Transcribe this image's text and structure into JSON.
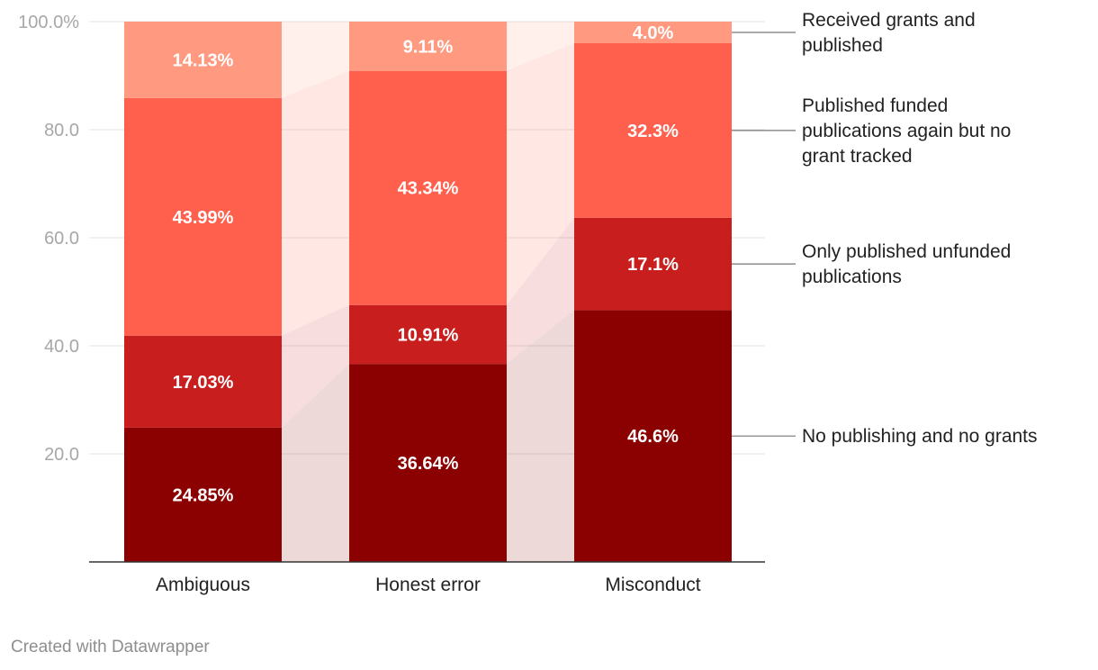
{
  "chart_data": {
    "type": "bar",
    "stacked": true,
    "categories": [
      "Ambiguous",
      "Honest error",
      "Misconduct"
    ],
    "series": [
      {
        "name": "No publishing and no grants",
        "values": [
          24.85,
          36.64,
          46.6
        ],
        "labels": [
          "24.85%",
          "36.64%",
          "46.6%"
        ],
        "color": "#8b0000"
      },
      {
        "name": "Only published unfunded publications",
        "values": [
          17.03,
          10.91,
          17.1
        ],
        "labels": [
          "17.03%",
          "10.91%",
          "17.1%"
        ],
        "color": "#c81e1e"
      },
      {
        "name": "Published funded publications again but no grant tracked",
        "values": [
          43.99,
          43.34,
          32.3
        ],
        "labels": [
          "43.99%",
          "43.34%",
          "32.3%"
        ],
        "color": "#ff604d"
      },
      {
        "name": "Received grants and published",
        "values": [
          14.13,
          9.11,
          4.0
        ],
        "labels": [
          "14.13%",
          "9.11%",
          "4.0%"
        ],
        "color": "#ff9a80"
      }
    ],
    "legend_lines": [
      [
        "No publishing and no grants"
      ],
      [
        "Only published unfunded",
        "publications"
      ],
      [
        "Published funded",
        "publications again but no",
        "grant tracked"
      ],
      [
        "Received grants and",
        "published"
      ]
    ],
    "yticks": [
      "20.0",
      "40.0",
      "60.0",
      "80.0",
      "100.0%"
    ],
    "ytick_values": [
      20,
      40,
      60,
      80,
      100
    ],
    "ylim": [
      0,
      100
    ],
    "grid": true,
    "legend_position": "right"
  },
  "footer": {
    "credit": "Created with Datawrapper"
  }
}
